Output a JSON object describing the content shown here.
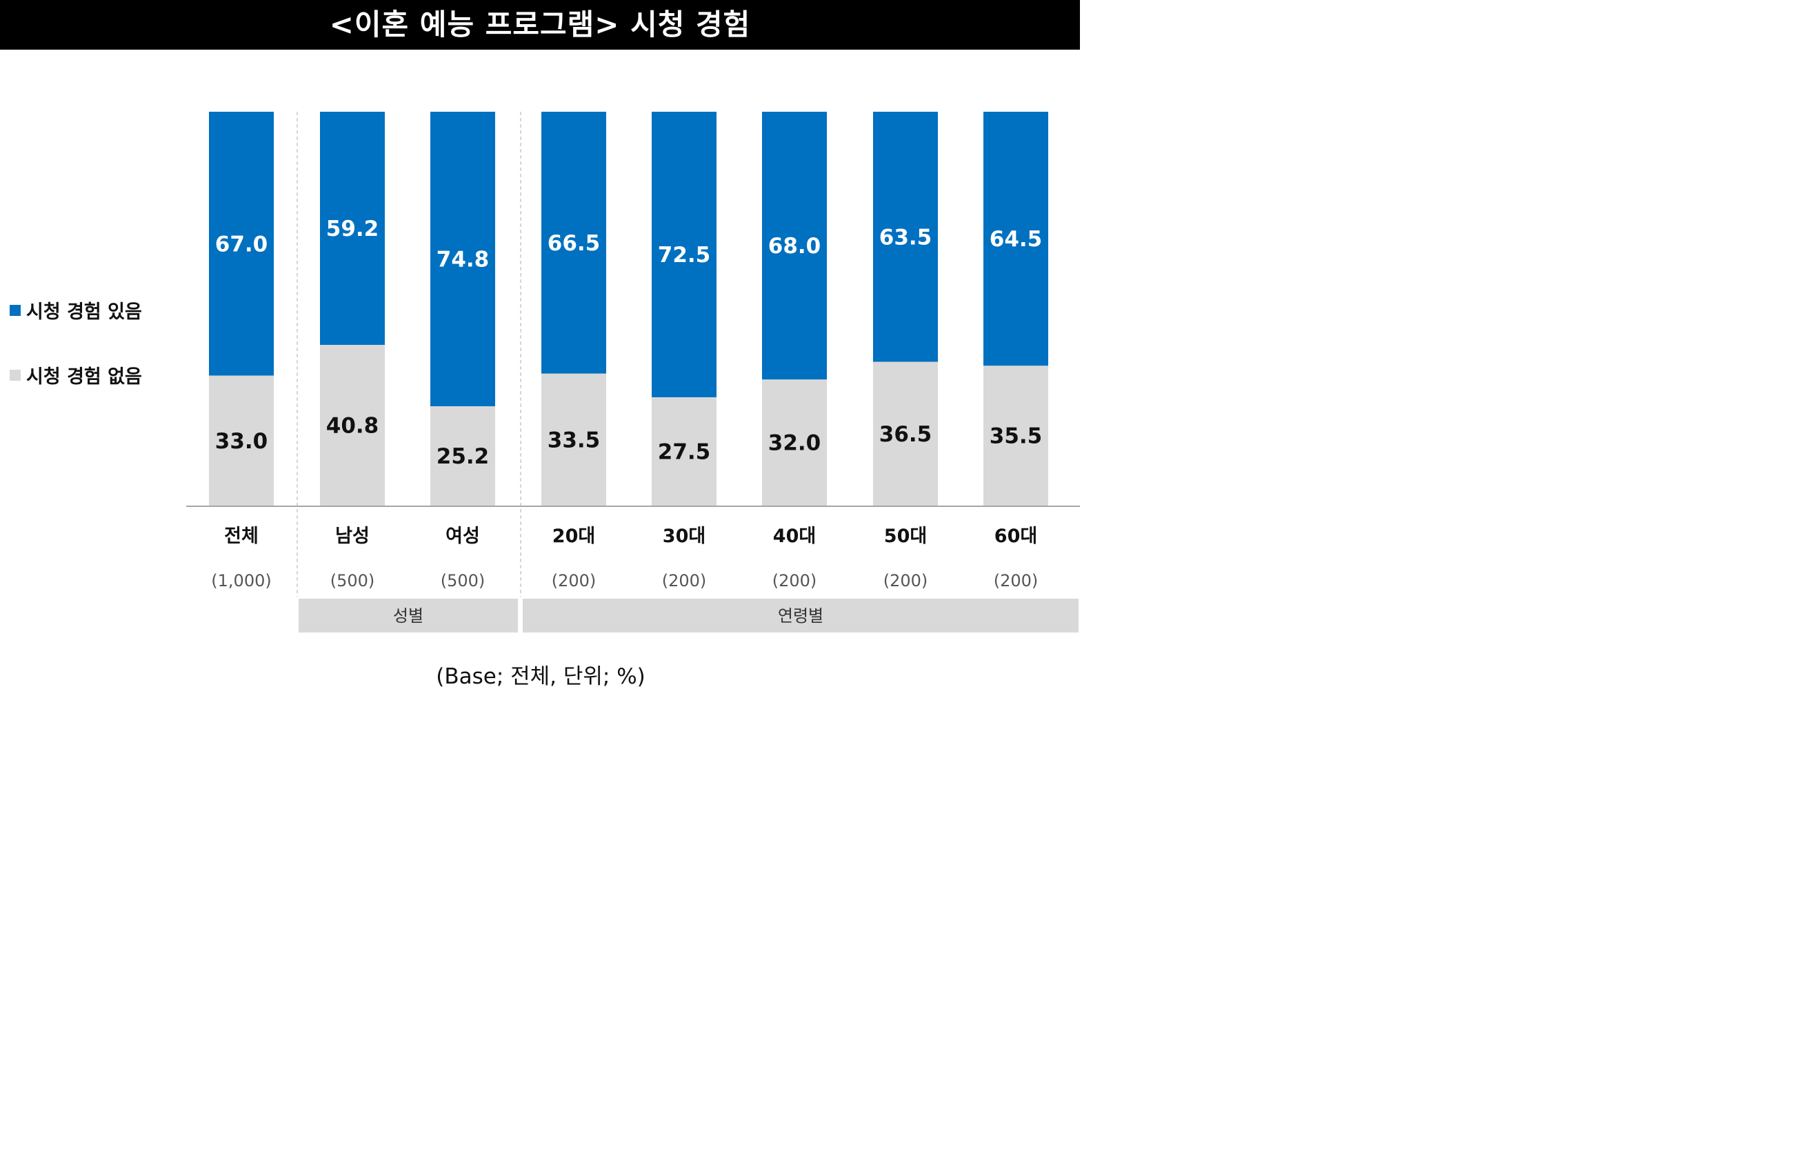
{
  "title": "<이혼 예능 프로그램> 시청 경험",
  "legend": {
    "has": "시청 경험 있음",
    "none": "시청 경험 없음"
  },
  "colors": {
    "has": "#0070C0",
    "none": "#D9D9D9",
    "divider": "#BFBFBF",
    "group_box": "#D9D9D9"
  },
  "groups": [
    {
      "label": "성별",
      "categories": [
        "남성",
        "여성"
      ]
    },
    {
      "label": "연령별",
      "categories": [
        "20대",
        "30대",
        "40대",
        "50대",
        "60대"
      ]
    }
  ],
  "base_note": "(Base; 전체, 단위; %)",
  "chart_data": {
    "type": "bar",
    "stacked": true,
    "orientation": "vertical",
    "categories": [
      "전체",
      "남성",
      "여성",
      "20대",
      "30대",
      "40대",
      "50대",
      "60대"
    ],
    "sample_sizes": [
      "(1,000)",
      "(500)",
      "(500)",
      "(200)",
      "(200)",
      "(200)",
      "(200)",
      "(200)"
    ],
    "series": [
      {
        "name": "시청 경험 있음",
        "values": [
          "67.0",
          "59.2",
          "74.8",
          "66.5",
          "72.5",
          "68.0",
          "63.5",
          "64.5"
        ]
      },
      {
        "name": "시청 경험 없음",
        "values": [
          "33.0",
          "40.8",
          "25.2",
          "33.5",
          "27.5",
          "32.0",
          "36.5",
          "35.5"
        ]
      }
    ],
    "ylim": [
      0,
      100
    ],
    "legend_position": "left",
    "title": "<이혼 예능 프로그램> 시청 경험"
  }
}
